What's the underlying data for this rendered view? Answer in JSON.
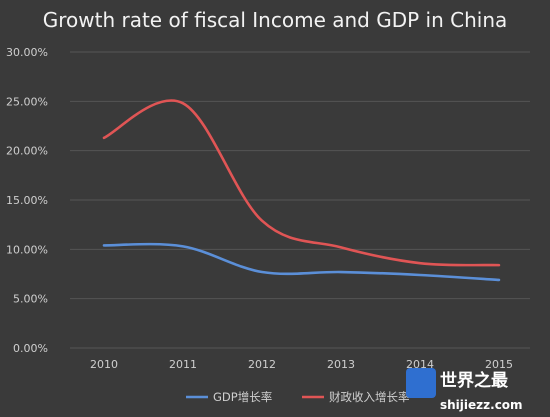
{
  "chart_data": {
    "type": "line",
    "title": "Growth rate of fiscal Income and GDP in China",
    "categories": [
      "2010",
      "2011",
      "2012",
      "2013",
      "2014",
      "2015"
    ],
    "series": [
      {
        "name": "GDP增长率",
        "color": "#5b8fd8",
        "values": [
          10.4,
          10.3,
          7.7,
          7.7,
          7.4,
          6.9
        ]
      },
      {
        "name": "财政收入增长率",
        "color": "#e05555",
        "values": [
          21.3,
          24.8,
          12.9,
          10.2,
          8.6,
          8.4
        ]
      }
    ],
    "ylim": [
      0,
      30
    ],
    "yticks": [
      "0.00%",
      "5.00%",
      "10.00%",
      "15.00%",
      "20.00%",
      "25.00%",
      "30.00%"
    ],
    "xlabel": "",
    "ylabel": "",
    "grid": true,
    "legend_position": "bottom"
  },
  "watermark": {
    "line1": "世界之最",
    "line2": "shijiezz.com"
  }
}
